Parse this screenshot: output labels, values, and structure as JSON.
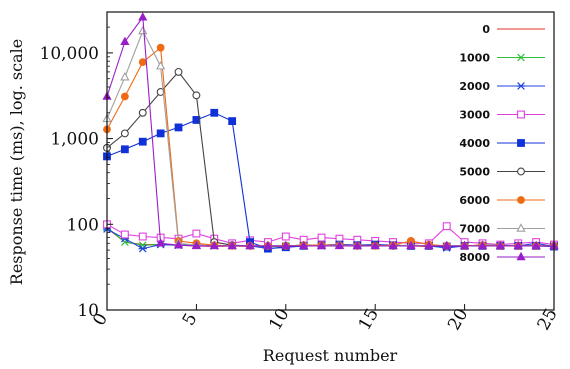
{
  "chart_data": {
    "type": "line",
    "title": "",
    "xlabel": "Request number",
    "ylabel": "Response time (ms), log. scale",
    "x_scale": "linear",
    "y_scale": "log",
    "xlim": [
      0,
      25
    ],
    "ylim": [
      10,
      30000
    ],
    "xticks": [
      0,
      5,
      10,
      15,
      20,
      25
    ],
    "xtick_labels": [
      "0",
      "5",
      "10",
      "15",
      "20",
      "25"
    ],
    "yticks": [
      10,
      100,
      1000,
      10000
    ],
    "ytick_labels": [
      "10",
      "100",
      "1,000",
      "10,000"
    ],
    "grid": false,
    "legend_position": "right, inside",
    "series": [
      {
        "name": "0",
        "color": "#e0302a",
        "marker": "none",
        "x": [
          0,
          1,
          2,
          3,
          4,
          5,
          6,
          7,
          8,
          9,
          10,
          11,
          12,
          13,
          14,
          15,
          16,
          17,
          18,
          19,
          20,
          21,
          22,
          23,
          24,
          25
        ],
        "y": [
          90,
          62,
          58,
          58,
          57,
          56,
          55,
          56,
          55,
          55,
          55,
          56,
          57,
          58,
          57,
          56,
          57,
          56,
          55,
          55,
          56,
          57,
          56,
          56,
          56,
          55
        ]
      },
      {
        "name": "1000",
        "color": "#2fbf3a",
        "marker": "x",
        "x": [
          0,
          1,
          2,
          3,
          4,
          5,
          6,
          7,
          8,
          9,
          10,
          11,
          12,
          13,
          14,
          15,
          16,
          17,
          18,
          19,
          20,
          21,
          22,
          23,
          24,
          25
        ],
        "y": [
          92,
          62,
          57,
          58,
          57,
          57,
          56,
          56,
          56,
          55,
          56,
          57,
          56,
          57,
          56,
          56,
          57,
          56,
          56,
          55,
          56,
          57,
          57,
          56,
          56,
          56
        ]
      },
      {
        "name": "2000",
        "color": "#2244dd",
        "marker": "star",
        "x": [
          0,
          1,
          2,
          3,
          4,
          5,
          6,
          7,
          8,
          9,
          10,
          11,
          12,
          13,
          14,
          15,
          16,
          17,
          18,
          19,
          20,
          21,
          22,
          23,
          24,
          25
        ],
        "y": [
          88,
          68,
          52,
          58,
          57,
          57,
          56,
          56,
          56,
          52,
          54,
          56,
          56,
          57,
          56,
          57,
          56,
          56,
          56,
          53,
          56,
          56,
          56,
          56,
          60,
          55
        ]
      },
      {
        "name": "3000",
        "color": "#e040e0",
        "marker": "open-square",
        "x": [
          0,
          1,
          2,
          3,
          4,
          5,
          6,
          7,
          8,
          9,
          10,
          11,
          12,
          13,
          14,
          15,
          16,
          17,
          18,
          19,
          20,
          21,
          22,
          23,
          24,
          25
        ],
        "y": [
          100,
          76,
          72,
          70,
          68,
          78,
          68,
          60,
          65,
          62,
          72,
          66,
          70,
          68,
          66,
          64,
          62,
          60,
          60,
          95,
          62,
          60,
          58,
          60,
          62,
          58
        ]
      },
      {
        "name": "4000",
        "color": "#1030d8",
        "marker": "filled-square",
        "x": [
          0,
          1,
          2,
          3,
          4,
          5,
          6,
          7,
          8,
          9,
          10,
          11,
          12,
          13,
          14,
          15,
          16,
          17,
          18,
          19,
          20,
          21,
          22,
          23,
          24,
          25
        ],
        "y": [
          620,
          750,
          920,
          1150,
          1350,
          1650,
          2000,
          1600,
          62,
          52,
          54,
          56,
          57,
          58,
          57,
          58,
          57,
          56,
          56,
          55,
          56,
          56,
          56,
          56,
          56,
          55
        ]
      },
      {
        "name": "5000",
        "color": "#444444",
        "marker": "open-circle",
        "x": [
          0,
          1,
          2,
          3,
          4,
          5,
          6,
          7,
          8,
          9,
          10,
          11,
          12,
          13,
          14,
          15,
          16,
          17,
          18,
          19,
          20,
          21,
          22,
          23,
          24,
          25
        ],
        "y": [
          780,
          1150,
          2000,
          3500,
          6000,
          3200,
          62,
          57,
          56,
          56,
          56,
          57,
          57,
          57,
          56,
          57,
          56,
          57,
          56,
          56,
          56,
          57,
          56,
          56,
          56,
          56
        ]
      },
      {
        "name": "6000",
        "color": "#f06a14",
        "marker": "filled-circle",
        "x": [
          0,
          1,
          2,
          3,
          4,
          5,
          6,
          7,
          8,
          9,
          10,
          11,
          12,
          13,
          14,
          15,
          16,
          17,
          18,
          19,
          20,
          21,
          22,
          23,
          24,
          25
        ],
        "y": [
          1280,
          3100,
          7800,
          11500,
          64,
          60,
          57,
          56,
          56,
          56,
          56,
          57,
          57,
          57,
          56,
          56,
          57,
          64,
          58,
          56,
          56,
          57,
          56,
          56,
          56,
          56
        ]
      },
      {
        "name": "7000",
        "color": "#a0a0a0",
        "marker": "open-triangle",
        "x": [
          0,
          1,
          2,
          3,
          4,
          5,
          6,
          7,
          8,
          9,
          10,
          11,
          12,
          13,
          14,
          15,
          16,
          17,
          18,
          19,
          20,
          21,
          22,
          23,
          24,
          25
        ],
        "y": [
          1700,
          5200,
          18000,
          7000,
          60,
          57,
          56,
          56,
          56,
          56,
          56,
          56,
          56,
          57,
          56,
          56,
          56,
          57,
          56,
          56,
          56,
          56,
          56,
          56,
          56,
          56
        ]
      },
      {
        "name": "8000",
        "color": "#9a1ec8",
        "marker": "filled-triangle",
        "x": [
          0,
          1,
          2,
          3,
          4,
          5,
          6,
          7,
          8,
          9,
          10,
          11,
          12,
          13,
          14,
          15,
          16,
          17,
          18,
          19,
          20,
          21,
          22,
          23,
          24,
          25
        ],
        "y": [
          3100,
          13500,
          26000,
          60,
          57,
          56,
          56,
          56,
          56,
          56,
          56,
          56,
          56,
          56,
          56,
          56,
          56,
          56,
          56,
          56,
          56,
          56,
          56,
          56,
          56,
          56
        ]
      }
    ]
  }
}
